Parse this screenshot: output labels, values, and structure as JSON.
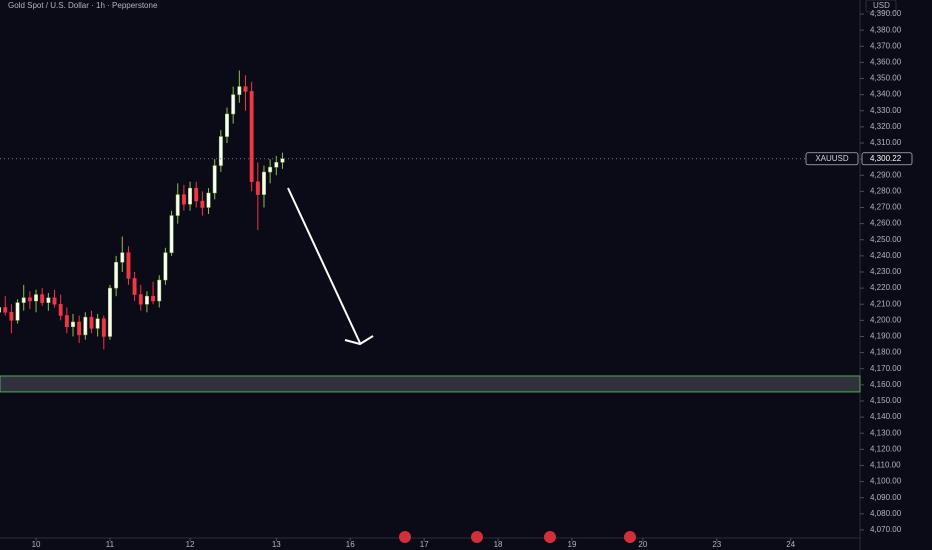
{
  "chart_data": {
    "type": "candlestick",
    "title": "Gold Spot / U.S. Dollar · 1h · Pepperstone",
    "currency": "USD",
    "symbol": "XAUUSD",
    "last_price": 4300.22,
    "last_label": "4,300.22",
    "up_color": "#ffffff",
    "up_wick": "#8bc34a",
    "down_color": "#f23645",
    "zone": [
      4155.6,
      4165.5
    ],
    "x": [
      -12,
      -10,
      -8,
      -6,
      -4,
      -2,
      0,
      2,
      4,
      6,
      8,
      10,
      12,
      14,
      16,
      18,
      20,
      22,
      24,
      26,
      28,
      30,
      32,
      34,
      36,
      38,
      40,
      42,
      44,
      46,
      48,
      50,
      52,
      54,
      56,
      58,
      60,
      62,
      64,
      66,
      68,
      70,
      72,
      74,
      76,
      78,
      80
    ],
    "open": [
      4205,
      4208,
      4205,
      4200,
      4211,
      4214,
      4212,
      4216,
      4211,
      4214,
      4210,
      4203,
      4196,
      4199,
      4191,
      4202,
      4195,
      4201,
      4190,
      4220,
      4236,
      4242,
      4226,
      4216,
      4210,
      4215,
      4212,
      4225,
      4242,
      4265,
      4278,
      4272,
      4282,
      4274,
      4270,
      4279,
      4296,
      4314,
      4328,
      4340,
      4345,
      4342,
      4286,
      4278,
      4292,
      4295,
      4298
    ],
    "high": [
      4212,
      4215,
      4210,
      4213,
      4222,
      4218,
      4219,
      4220,
      4217,
      4219,
      4216,
      4208,
      4204,
      4203,
      4205,
      4206,
      4204,
      4203,
      4222,
      4240,
      4252,
      4246,
      4230,
      4222,
      4218,
      4224,
      4228,
      4245,
      4268,
      4285,
      4284,
      4286,
      4286,
      4280,
      4282,
      4300,
      4318,
      4332,
      4345,
      4355,
      4352,
      4348,
      4298,
      4296,
      4300,
      4302,
      4304
    ],
    "low": [
      4195,
      4203,
      4192,
      4198,
      4206,
      4207,
      4205,
      4209,
      4206,
      4208,
      4200,
      4192,
      4190,
      4186,
      4188,
      4192,
      4190,
      4182,
      4188,
      4215,
      4230,
      4222,
      4212,
      4206,
      4205,
      4210,
      4208,
      4222,
      4240,
      4260,
      4268,
      4268,
      4270,
      4265,
      4266,
      4275,
      4292,
      4310,
      4322,
      4335,
      4330,
      4280,
      4256,
      4270,
      4285,
      4290,
      4294
    ],
    "close": [
      4208,
      4205,
      4200,
      4211,
      4214,
      4212,
      4216,
      4211,
      4214,
      4210,
      4203,
      4196,
      4199,
      4191,
      4202,
      4195,
      4201,
      4190,
      4220,
      4236,
      4242,
      4226,
      4216,
      4210,
      4215,
      4212,
      4225,
      4242,
      4265,
      4278,
      4272,
      4282,
      4274,
      4270,
      4279,
      4296,
      4314,
      4328,
      4340,
      4345,
      4342,
      4286,
      4278,
      4292,
      4295,
      4298,
      4300.22
    ],
    "xlim": [
      -11.7,
      267.5
    ],
    "xticks": [
      {
        "value": 0,
        "label": "10"
      },
      {
        "value": 24,
        "label": "11"
      },
      {
        "value": 50,
        "label": "12"
      },
      {
        "value": 78,
        "label": "13"
      },
      {
        "value": 102,
        "label": "16"
      },
      {
        "value": 126,
        "label": "17"
      },
      {
        "value": 150,
        "label": "18"
      },
      {
        "value": 174,
        "label": "19"
      },
      {
        "value": 197,
        "label": "20"
      },
      {
        "value": 221,
        "label": "23"
      },
      {
        "value": 245,
        "label": "24"
      }
    ],
    "ylim": [
      4065,
      4398.7
    ],
    "yticks": [
      {
        "value": 4070,
        "label": "4,070.00"
      },
      {
        "value": 4080,
        "label": "4,080.00"
      },
      {
        "value": 4090,
        "label": "4,090.00"
      },
      {
        "value": 4100,
        "label": "4,100.00"
      },
      {
        "value": 4110,
        "label": "4,110.00"
      },
      {
        "value": 4120,
        "label": "4,120.00"
      },
      {
        "value": 4130,
        "label": "4,130.00"
      },
      {
        "value": 4140,
        "label": "4,140.00"
      },
      {
        "value": 4150,
        "label": "4,150.00"
      },
      {
        "value": 4160,
        "label": "4,160.00"
      },
      {
        "value": 4170,
        "label": "4,170.00"
      },
      {
        "value": 4180,
        "label": "4,180.00"
      },
      {
        "value": 4190,
        "label": "4,190.00"
      },
      {
        "value": 4200,
        "label": "4,200.00"
      },
      {
        "value": 4210,
        "label": "4,210.00"
      },
      {
        "value": 4220,
        "label": "4,220.00"
      },
      {
        "value": 4230,
        "label": "4,230.00"
      },
      {
        "value": 4240,
        "label": "4,240.00"
      },
      {
        "value": 4250,
        "label": "4,250.00"
      },
      {
        "value": 4260,
        "label": "4,260.00"
      },
      {
        "value": 4270,
        "label": "4,270.00"
      },
      {
        "value": 4280,
        "label": "4,280.00"
      },
      {
        "value": 4290,
        "label": "4,290.00"
      },
      {
        "value": 4300,
        "label": "4,300.00"
      },
      {
        "value": 4310,
        "label": "4,310.00"
      },
      {
        "value": 4320,
        "label": "4,320.00"
      },
      {
        "value": 4330,
        "label": "4,330.00"
      },
      {
        "value": 4340,
        "label": "4,340.00"
      },
      {
        "value": 4350,
        "label": "4,350.00"
      },
      {
        "value": 4360,
        "label": "4,360.00"
      },
      {
        "value": 4370,
        "label": "4,370.00"
      },
      {
        "value": 4380,
        "label": "4,380.00"
      },
      {
        "value": 4390,
        "label": "4,390.00"
      }
    ]
  }
}
